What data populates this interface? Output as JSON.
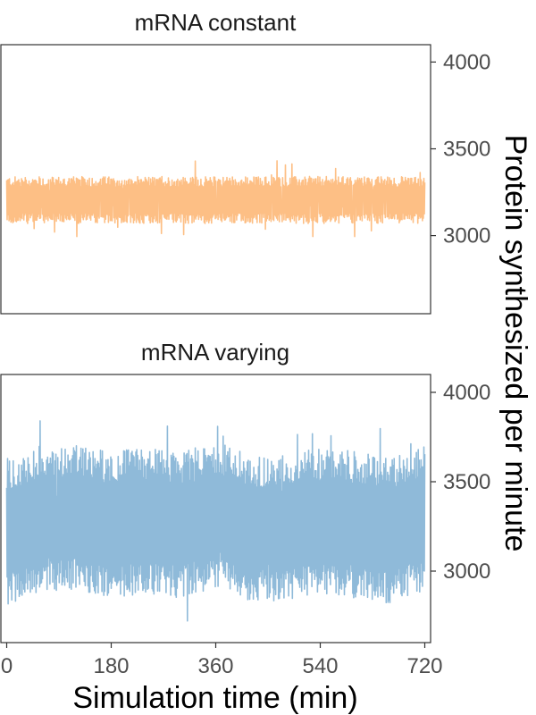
{
  "chart_data": {
    "type": "line",
    "xlabel": "Simulation time (min)",
    "ylabel": "Protein synthesized per minute",
    "xlim": [
      -10,
      730
    ],
    "x_ticks": [
      0,
      180,
      360,
      540,
      720
    ],
    "y_ticks": [
      3000,
      3500,
      4000
    ],
    "y_axis_position": "right",
    "grid": false,
    "facets": [
      {
        "title": "mRNA constant",
        "color": "#fdbf85",
        "ylim": [
          2550,
          4100
        ],
        "series": {
          "x_start": 0,
          "x_end": 720,
          "mean": 3205,
          "band_low": 3070,
          "band_high": 3340,
          "min": 2995,
          "max": 3475
        }
      },
      {
        "title": "mRNA varying",
        "color": "#8fbad9",
        "ylim": [
          2600,
          4100
        ],
        "series": {
          "x_start": 0,
          "x_end": 720,
          "mean_path": [
            [
              0,
              3220
            ],
            [
              60,
              3300
            ],
            [
              120,
              3300
            ],
            [
              180,
              3260
            ],
            [
              240,
              3280
            ],
            [
              300,
              3260
            ],
            [
              360,
              3320
            ],
            [
              420,
              3240
            ],
            [
              480,
              3240
            ],
            [
              540,
              3280
            ],
            [
              600,
              3260
            ],
            [
              660,
              3230
            ],
            [
              720,
              3300
            ]
          ],
          "band_low": 2900,
          "band_high": 3720,
          "min": 2640,
          "max": 3940
        }
      }
    ]
  }
}
